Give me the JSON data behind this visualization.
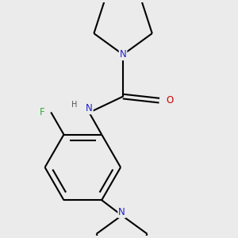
{
  "background_color": "#ebebeb",
  "atom_colors": {
    "C": "#000000",
    "N": "#2222cc",
    "O": "#cc0000",
    "F": "#33aa33",
    "H": "#555555"
  },
  "bond_color": "#000000",
  "bond_width": 1.5,
  "font_size_atom": 8.5
}
